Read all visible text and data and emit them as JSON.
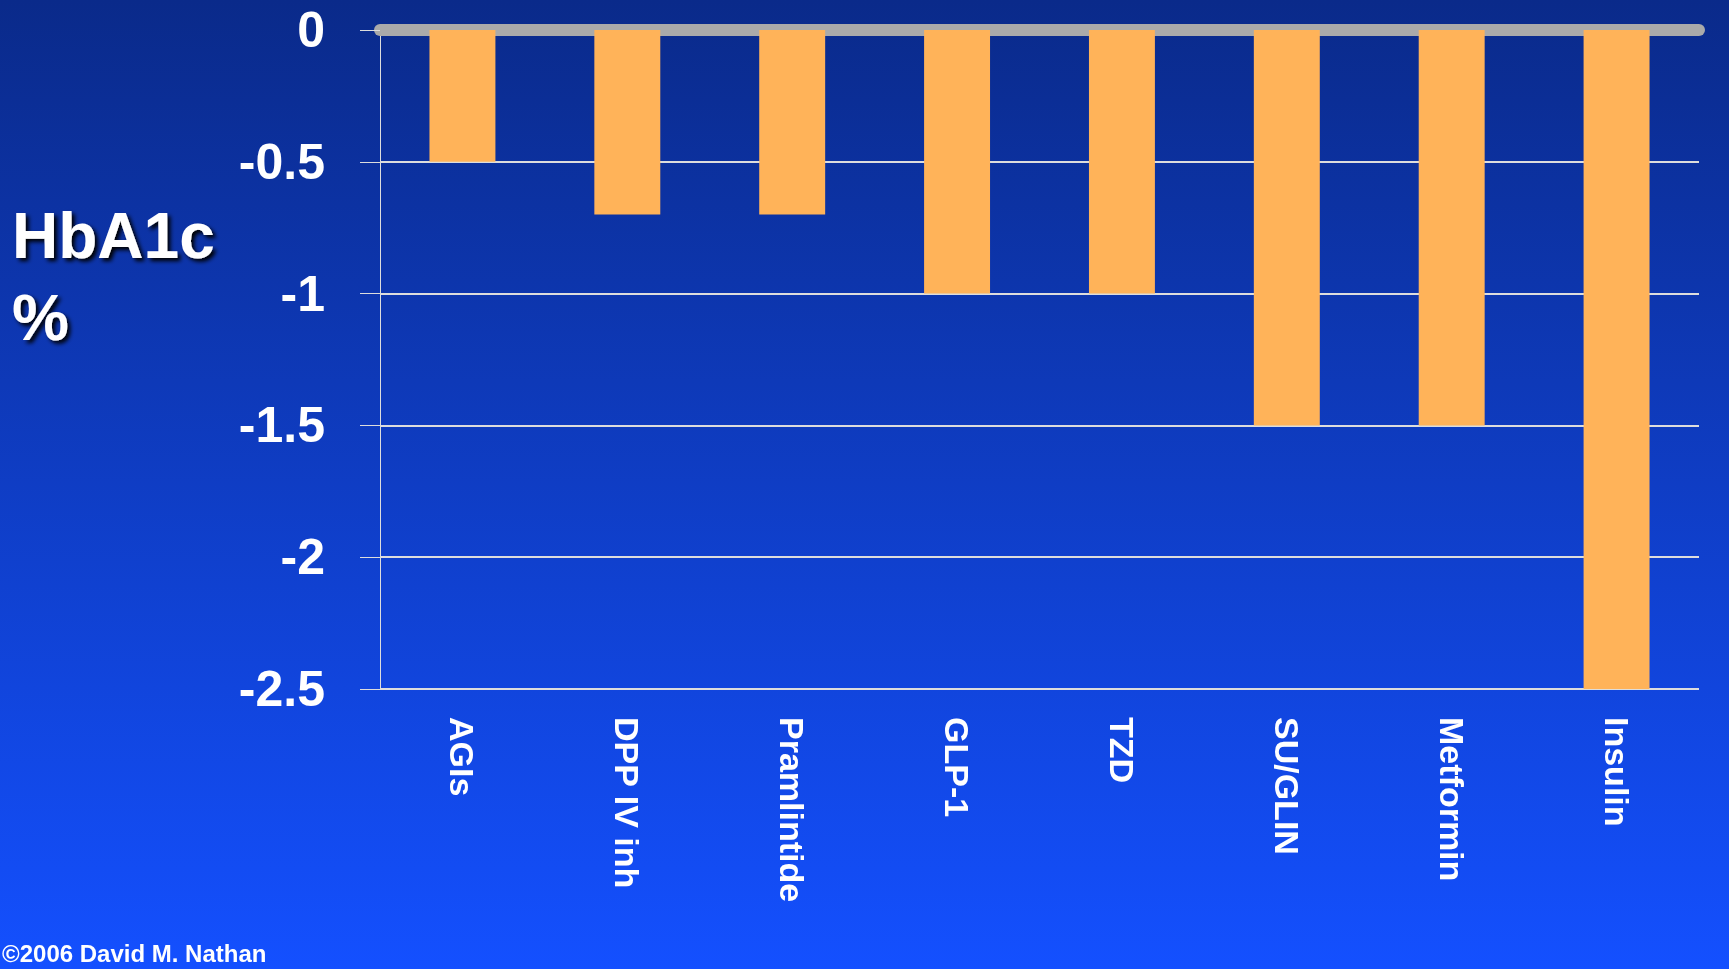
{
  "chart_data": {
    "type": "bar",
    "ylabel": "HbA1c\n%",
    "categories": [
      "AGIs",
      "DPP IV inh",
      "Pramlintide",
      "GLP-1",
      "TZD",
      "SU/GLIN",
      "Metformin",
      "Insulin"
    ],
    "values": [
      -0.5,
      -0.7,
      -0.7,
      -1,
      -1,
      -1.5,
      -1.5,
      -2.5
    ],
    "color": "#ffb359",
    "ylim": [
      -2.5,
      0
    ],
    "yticks": [
      0,
      -0.5,
      -1,
      -1.5,
      -2,
      -2.5
    ],
    "grid": true,
    "annotations": [
      "©2006 David M. Nathan"
    ]
  }
}
